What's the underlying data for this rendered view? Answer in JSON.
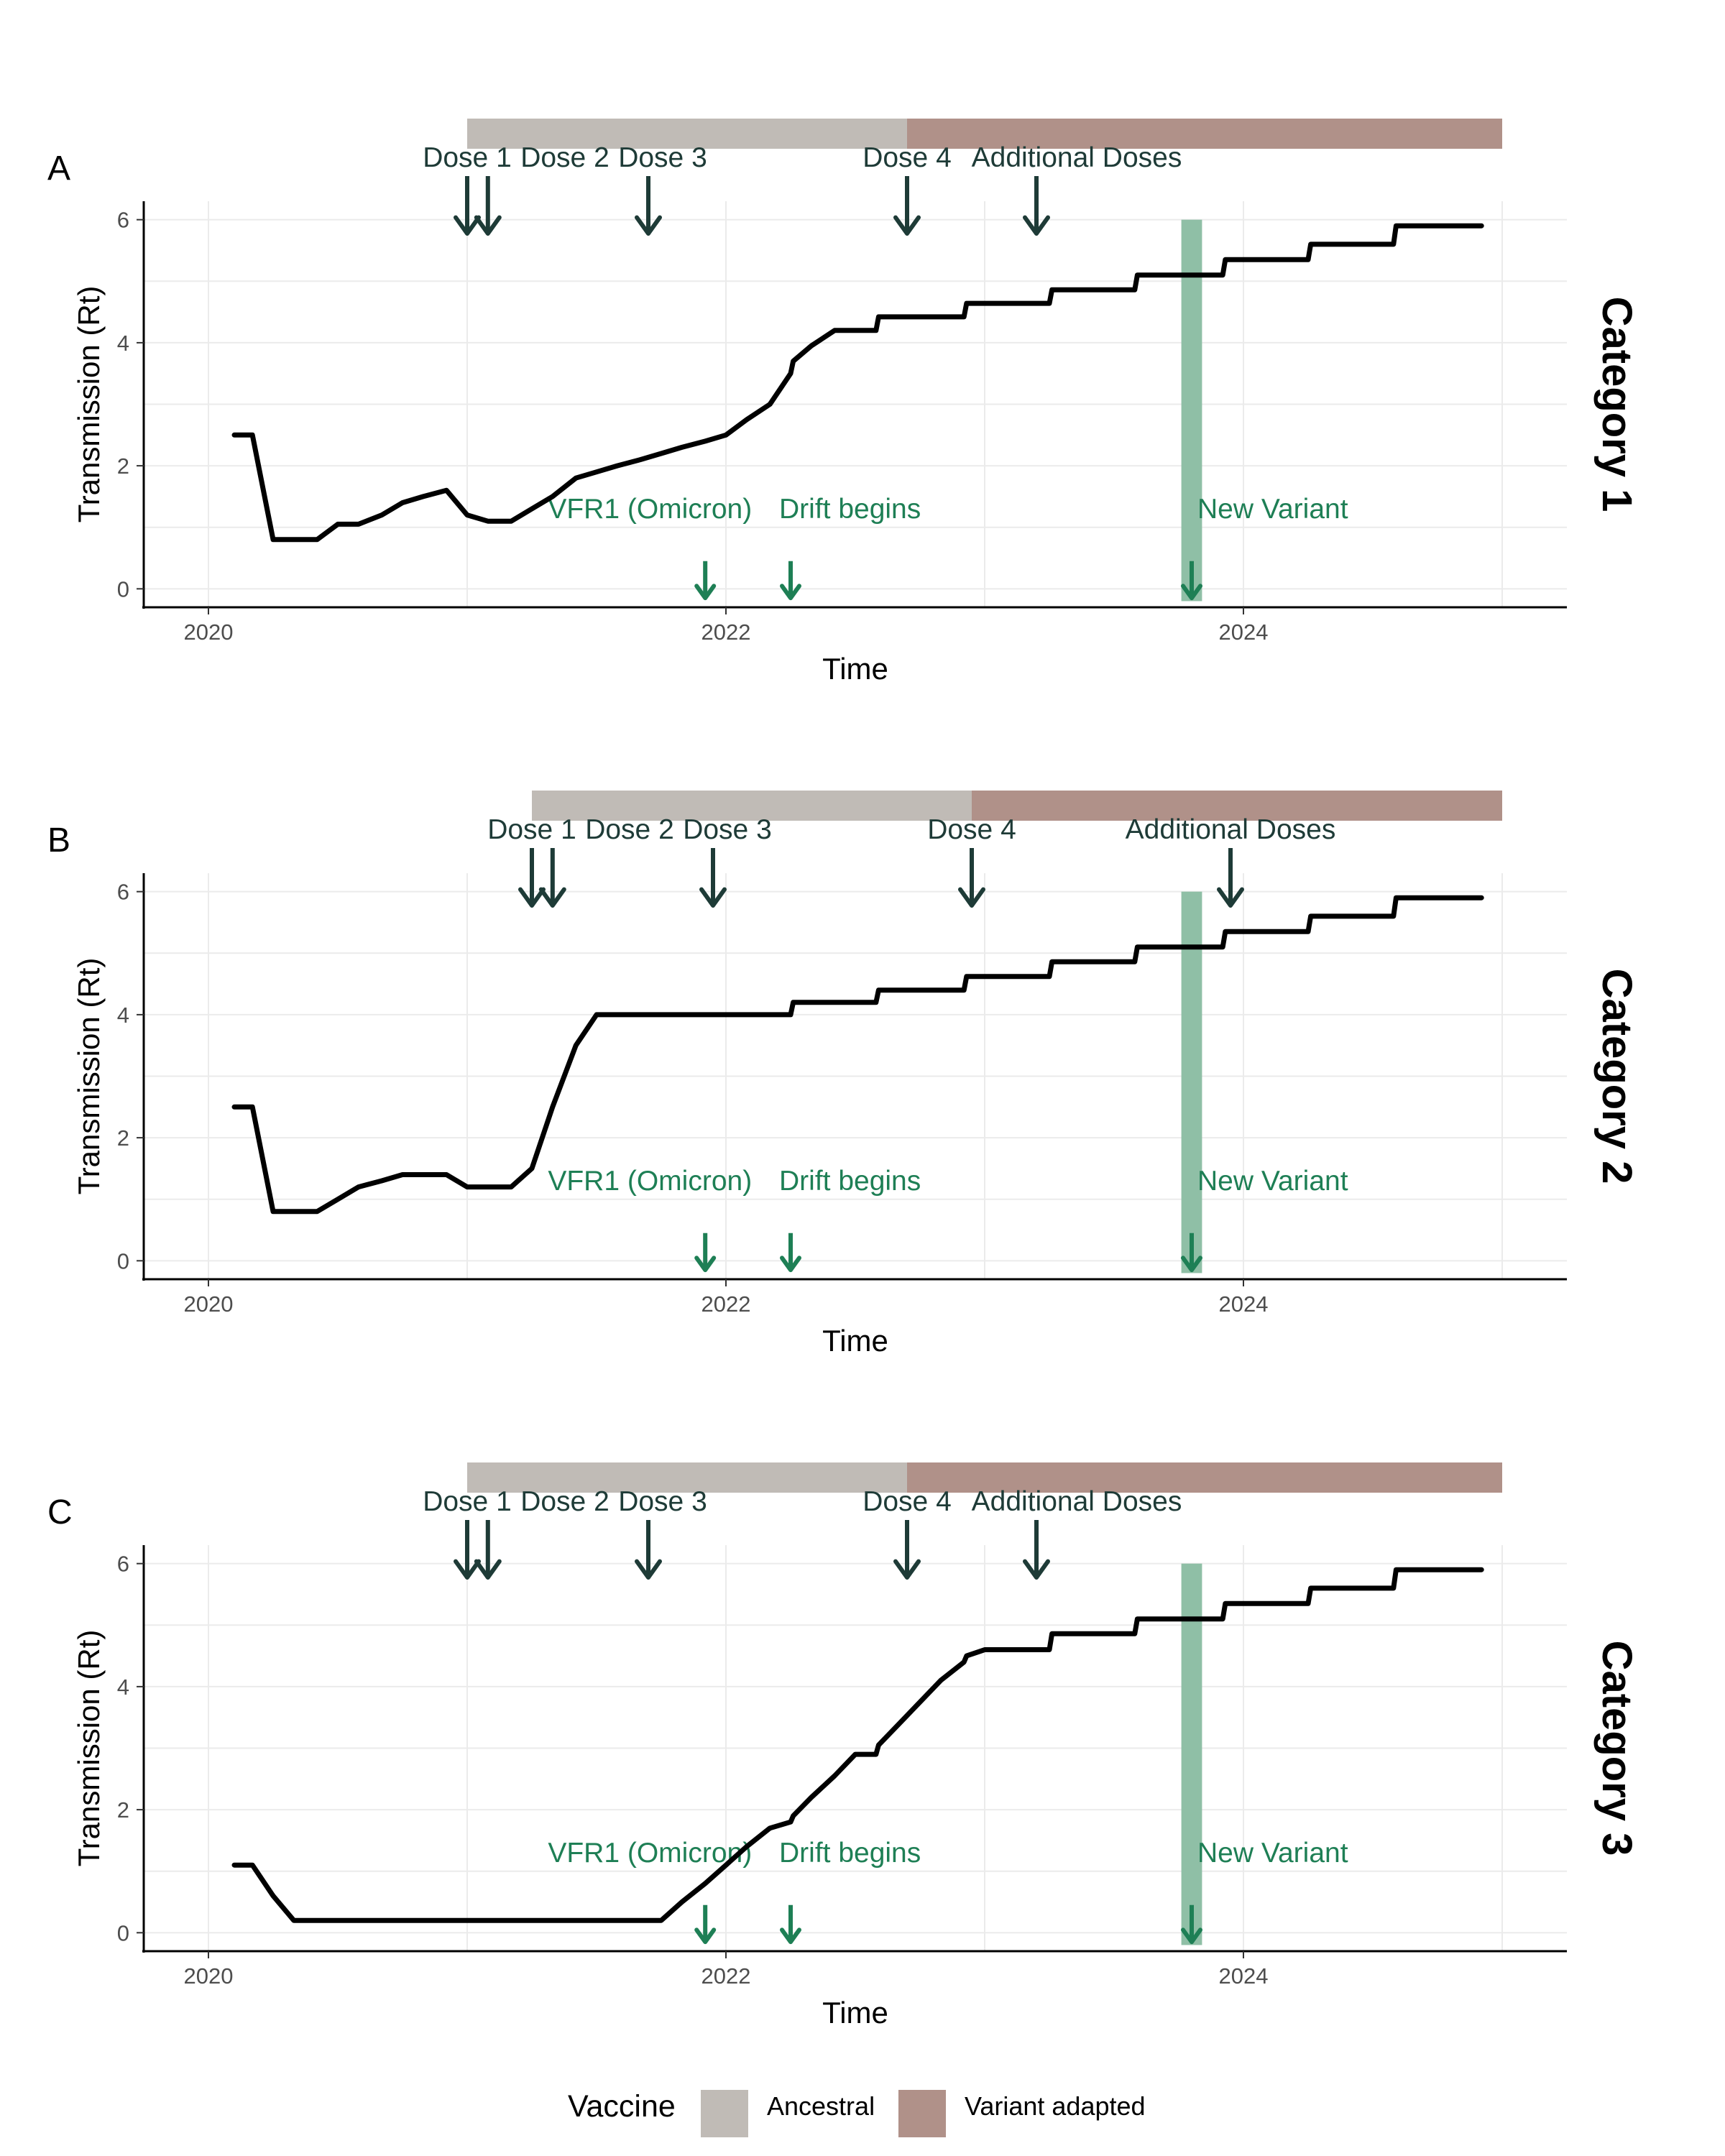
{
  "colors": {
    "ancestral": "#c0bbb6",
    "variant_adapted": "#b09189",
    "dose_arrow": "#1e3b37",
    "event": "#1e7f55",
    "new_variant_band": "#8fbfa6",
    "line": "#000000",
    "grid": "#ebebeb"
  },
  "legend": {
    "title": "Vaccine",
    "items": [
      {
        "label": "Ancestral",
        "color": "#c0bbb6"
      },
      {
        "label": "Variant adapted",
        "color": "#b09189"
      }
    ]
  },
  "chart_data": [
    {
      "type": "line",
      "panel": "A",
      "facet": "Category 1",
      "xlabel": "Time",
      "ylabel": "Transmission (Rt)",
      "xlim": [
        2019.75,
        2025.25
      ],
      "ylim": [
        -0.3,
        6.3
      ],
      "xticks": [
        2020,
        2022,
        2024
      ],
      "yticks": [
        0,
        2,
        4,
        6
      ],
      "x": [
        2020.1,
        2020.17,
        2020.25,
        2020.33,
        2020.42,
        2020.5,
        2020.58,
        2020.67,
        2020.75,
        2020.83,
        2020.92,
        2021.0,
        2021.08,
        2021.17,
        2021.25,
        2021.33,
        2021.42,
        2021.5,
        2021.58,
        2021.67,
        2021.75,
        2021.83,
        2021.92,
        2022.0,
        2022.08,
        2022.17,
        2022.25,
        2022.26,
        2022.33,
        2022.42,
        2022.5,
        2022.58,
        2022.59,
        2022.67,
        2022.75,
        2022.83,
        2022.92,
        2022.93,
        2023.0,
        2023.08,
        2023.17,
        2023.25,
        2023.26,
        2023.33,
        2023.42,
        2023.5,
        2023.58,
        2023.59,
        2023.67,
        2023.75,
        2023.83,
        2023.92,
        2023.93,
        2024.0,
        2024.08,
        2024.17,
        2024.25,
        2024.26,
        2024.33,
        2024.42,
        2024.5,
        2024.58,
        2024.59,
        2024.67,
        2024.75,
        2024.83,
        2024.92
      ],
      "y": [
        2.5,
        2.5,
        0.8,
        0.8,
        0.8,
        1.05,
        1.05,
        1.2,
        1.4,
        1.5,
        1.6,
        1.2,
        1.1,
        1.1,
        1.3,
        1.5,
        1.8,
        1.9,
        2.0,
        2.1,
        2.2,
        2.3,
        2.4,
        2.5,
        2.75,
        3.0,
        3.5,
        3.7,
        3.95,
        4.2,
        4.2,
        4.2,
        4.42,
        4.42,
        4.42,
        4.42,
        4.42,
        4.64,
        4.64,
        4.64,
        4.64,
        4.64,
        4.86,
        4.86,
        4.86,
        4.86,
        4.86,
        5.1,
        5.1,
        5.1,
        5.1,
        5.1,
        5.35,
        5.35,
        5.35,
        5.35,
        5.35,
        5.6,
        5.6,
        5.6,
        5.6,
        5.6,
        5.9,
        5.9,
        5.9,
        5.9,
        5.9
      ],
      "vaccine_bars": [
        {
          "vaccine": "Ancestral",
          "start": 2021.0,
          "end": 2022.7
        },
        {
          "vaccine": "Variant adapted",
          "start": 2022.7,
          "end": 2025.0
        }
      ],
      "doses": [
        {
          "label": "Dose 1",
          "x": 2021.0
        },
        {
          "label": "Dose 2",
          "x": 2021.08
        },
        {
          "label": "Dose 3",
          "x": 2021.7
        },
        {
          "label": "Dose 4",
          "x": 2022.7
        },
        {
          "label": "Additional Doses",
          "x": 2023.2
        }
      ],
      "events": [
        {
          "label": "VFR1 (Omicron)",
          "x": 2021.92
        },
        {
          "label": "Drift begins",
          "x": 2022.25
        },
        {
          "label": "New Variant",
          "x": 2023.8
        }
      ],
      "new_variant_band": [
        2023.76,
        2023.84
      ]
    },
    {
      "type": "line",
      "panel": "B",
      "facet": "Category 2",
      "xlabel": "Time",
      "ylabel": "Transmission (Rt)",
      "xlim": [
        2019.75,
        2025.25
      ],
      "ylim": [
        -0.3,
        6.3
      ],
      "xticks": [
        2020,
        2022,
        2024
      ],
      "yticks": [
        0,
        2,
        4,
        6
      ],
      "x": [
        2020.1,
        2020.17,
        2020.25,
        2020.33,
        2020.42,
        2020.5,
        2020.58,
        2020.67,
        2020.75,
        2020.83,
        2020.92,
        2021.0,
        2021.08,
        2021.17,
        2021.25,
        2021.33,
        2021.42,
        2021.5,
        2021.58,
        2021.67,
        2021.75,
        2021.83,
        2021.92,
        2022.0,
        2022.08,
        2022.17,
        2022.25,
        2022.26,
        2022.33,
        2022.42,
        2022.5,
        2022.58,
        2022.59,
        2022.67,
        2022.75,
        2022.83,
        2022.92,
        2022.93,
        2023.0,
        2023.08,
        2023.17,
        2023.25,
        2023.26,
        2023.33,
        2023.42,
        2023.5,
        2023.58,
        2023.59,
        2023.67,
        2023.75,
        2023.83,
        2023.92,
        2023.93,
        2024.0,
        2024.08,
        2024.17,
        2024.25,
        2024.26,
        2024.33,
        2024.42,
        2024.5,
        2024.58,
        2024.59,
        2024.67,
        2024.75,
        2024.83,
        2024.92
      ],
      "y": [
        2.5,
        2.5,
        0.8,
        0.8,
        0.8,
        1.0,
        1.2,
        1.3,
        1.4,
        1.4,
        1.4,
        1.2,
        1.2,
        1.2,
        1.5,
        2.5,
        3.5,
        4.0,
        4.0,
        4.0,
        4.0,
        4.0,
        4.0,
        4.0,
        4.0,
        4.0,
        4.0,
        4.2,
        4.2,
        4.2,
        4.2,
        4.2,
        4.4,
        4.4,
        4.4,
        4.4,
        4.4,
        4.62,
        4.62,
        4.62,
        4.62,
        4.62,
        4.86,
        4.86,
        4.86,
        4.86,
        4.86,
        5.1,
        5.1,
        5.1,
        5.1,
        5.1,
        5.35,
        5.35,
        5.35,
        5.35,
        5.35,
        5.6,
        5.6,
        5.6,
        5.6,
        5.6,
        5.9,
        5.9,
        5.9,
        5.9,
        5.9
      ],
      "vaccine_bars": [
        {
          "vaccine": "Ancestral",
          "start": 2021.25,
          "end": 2022.95
        },
        {
          "vaccine": "Variant adapted",
          "start": 2022.95,
          "end": 2025.0
        }
      ],
      "doses": [
        {
          "label": "Dose 1",
          "x": 2021.25
        },
        {
          "label": "Dose 2",
          "x": 2021.33
        },
        {
          "label": "Dose 3",
          "x": 2021.95
        },
        {
          "label": "Dose 4",
          "x": 2022.95
        },
        {
          "label": "Additional Doses",
          "x": 2023.95
        }
      ],
      "events": [
        {
          "label": "VFR1 (Omicron)",
          "x": 2021.92
        },
        {
          "label": "Drift begins",
          "x": 2022.25
        },
        {
          "label": "New Variant",
          "x": 2023.8
        }
      ],
      "new_variant_band": [
        2023.76,
        2023.84
      ]
    },
    {
      "type": "line",
      "panel": "C",
      "facet": "Category 3",
      "xlabel": "Time",
      "ylabel": "Transmission (Rt)",
      "xlim": [
        2019.75,
        2025.25
      ],
      "ylim": [
        -0.3,
        6.3
      ],
      "xticks": [
        2020,
        2022,
        2024
      ],
      "yticks": [
        0,
        2,
        4,
        6
      ],
      "x": [
        2020.1,
        2020.17,
        2020.25,
        2020.33,
        2020.42,
        2020.5,
        2020.58,
        2020.67,
        2020.75,
        2020.83,
        2020.92,
        2021.0,
        2021.08,
        2021.17,
        2021.25,
        2021.33,
        2021.42,
        2021.5,
        2021.58,
        2021.67,
        2021.75,
        2021.83,
        2021.92,
        2022.0,
        2022.08,
        2022.17,
        2022.25,
        2022.26,
        2022.33,
        2022.42,
        2022.5,
        2022.58,
        2022.59,
        2022.67,
        2022.75,
        2022.83,
        2022.92,
        2022.93,
        2023.0,
        2023.08,
        2023.17,
        2023.25,
        2023.26,
        2023.33,
        2023.42,
        2023.5,
        2023.58,
        2023.59,
        2023.67,
        2023.75,
        2023.83,
        2023.92,
        2023.93,
        2024.0,
        2024.08,
        2024.17,
        2024.25,
        2024.26,
        2024.33,
        2024.42,
        2024.5,
        2024.58,
        2024.59,
        2024.67,
        2024.75,
        2024.83,
        2024.92
      ],
      "y": [
        1.1,
        1.1,
        0.6,
        0.2,
        0.2,
        0.2,
        0.2,
        0.2,
        0.2,
        0.2,
        0.2,
        0.2,
        0.2,
        0.2,
        0.2,
        0.2,
        0.2,
        0.2,
        0.2,
        0.2,
        0.2,
        0.5,
        0.8,
        1.1,
        1.4,
        1.7,
        1.8,
        1.9,
        2.2,
        2.55,
        2.9,
        2.9,
        3.05,
        3.4,
        3.75,
        4.1,
        4.4,
        4.5,
        4.6,
        4.6,
        4.6,
        4.6,
        4.86,
        4.86,
        4.86,
        4.86,
        4.86,
        5.1,
        5.1,
        5.1,
        5.1,
        5.1,
        5.35,
        5.35,
        5.35,
        5.35,
        5.35,
        5.6,
        5.6,
        5.6,
        5.6,
        5.6,
        5.9,
        5.9,
        5.9,
        5.9,
        5.9
      ],
      "vaccine_bars": [
        {
          "vaccine": "Ancestral",
          "start": 2021.0,
          "end": 2022.7
        },
        {
          "vaccine": "Variant adapted",
          "start": 2022.7,
          "end": 2025.0
        }
      ],
      "doses": [
        {
          "label": "Dose 1",
          "x": 2021.0
        },
        {
          "label": "Dose 2",
          "x": 2021.08
        },
        {
          "label": "Dose 3",
          "x": 2021.7
        },
        {
          "label": "Dose 4",
          "x": 2022.7
        },
        {
          "label": "Additional Doses",
          "x": 2023.2
        }
      ],
      "events": [
        {
          "label": "VFR1 (Omicron)",
          "x": 2021.92
        },
        {
          "label": "Drift begins",
          "x": 2022.25
        },
        {
          "label": "New Variant",
          "x": 2023.8
        }
      ],
      "new_variant_band": [
        2023.76,
        2023.84
      ]
    }
  ]
}
